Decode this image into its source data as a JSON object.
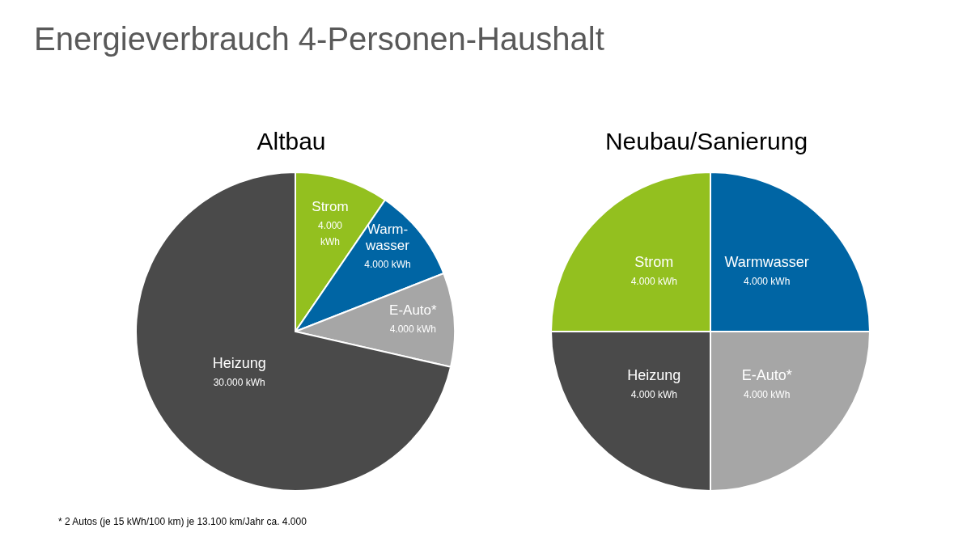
{
  "chart_data": [
    {
      "type": "pie",
      "title": "Altbau",
      "annotations": [
        "Energieverbrauch 4-Personen-Haushalt",
        "* 2 Autos (je 15 kWh/100 km) je 13.100 km/Jahr ca. 4.000"
      ],
      "categories": [
        "Strom",
        "Warm-wasser",
        "E-Auto*",
        "Heizung"
      ],
      "values": [
        4000,
        4000,
        4000,
        30000
      ],
      "value_labels": [
        "4.000 kWh",
        "4.000 kWh",
        "4.000 kWh",
        "30.000 kWh"
      ],
      "colors": [
        "#93c01f",
        "#0065a4",
        "#a6a6a6",
        "#4a4a4a"
      ]
    },
    {
      "type": "pie",
      "title": "Neubau/Sanierung",
      "categories": [
        "Warmwasser",
        "E-Auto*",
        "Heizung",
        "Strom"
      ],
      "values": [
        4000,
        4000,
        4000,
        4000
      ],
      "value_labels": [
        "4.000 kWh",
        "4.000 kWh",
        "4.000 kWh",
        "4.000 kWh"
      ],
      "colors": [
        "#0065a4",
        "#a6a6a6",
        "#4a4a4a",
        "#93c01f"
      ]
    }
  ]
}
